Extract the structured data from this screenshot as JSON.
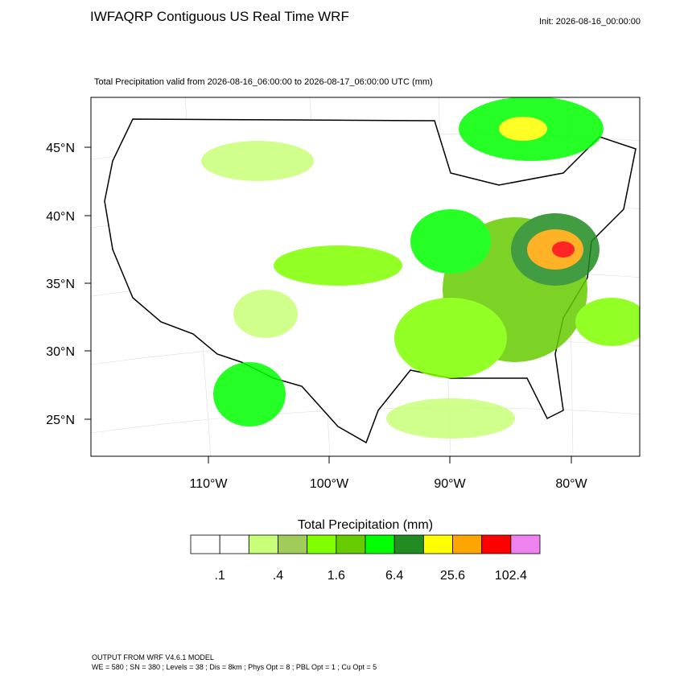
{
  "header": {
    "title": "IWFAQRP Contiguous US Real Time WRF",
    "init": "Init: 2026-08-16_00:00:00"
  },
  "map": {
    "subtitle": "Total Precipitation valid from 2026-08-16_06:00:00 to 2026-08-17_06:00:00 UTC   (mm)",
    "lat_labels": [
      "45°N",
      "40°N",
      "35°N",
      "30°N",
      "25°N"
    ],
    "lon_labels": [
      "110°W",
      "100°W",
      "90°W",
      "80°W"
    ]
  },
  "colorbar": {
    "title": "Total Precipitation  (mm)",
    "colors": [
      "#ffffff",
      "#ffffff",
      "#c8ff78",
      "#a0cd5a",
      "#80ff00",
      "#66cc00",
      "#00ff00",
      "#228b22",
      "#ffff00",
      "#ffa500",
      "#ff0000",
      "#ee82ee"
    ],
    "ticks": [
      {
        "value": 0.1,
        "label": ".1"
      },
      {
        "value": 0.4,
        "label": ".4"
      },
      1.6,
      6.4,
      25.6,
      102.4
    ]
  },
  "footer": {
    "line1": "OUTPUT FROM WRF V4.6.1 MODEL",
    "line2": "WE = 580 ; SN = 380 ; Levels = 38 ; Dis = 8km ; Phys Opt = 8 ; PBL Opt = 1 ; Cu Opt = 5"
  }
}
